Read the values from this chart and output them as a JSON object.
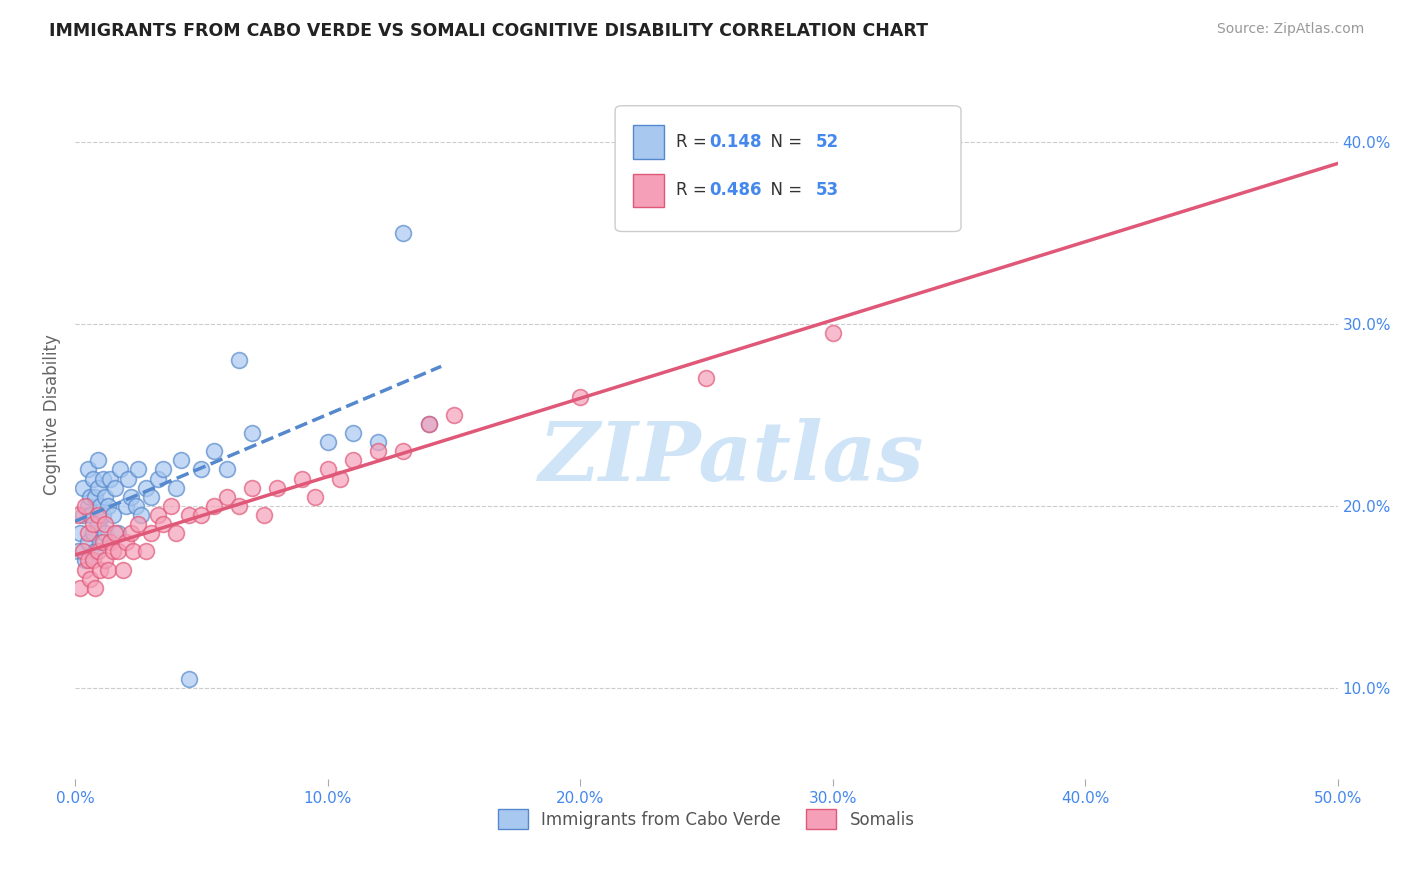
{
  "title": "IMMIGRANTS FROM CABO VERDE VS SOMALI COGNITIVE DISABILITY CORRELATION CHART",
  "source": "Source: ZipAtlas.com",
  "ylabel": "Cognitive Disability",
  "R_cabo": 0.148,
  "N_cabo": 52,
  "R_somali": 0.486,
  "N_somali": 53,
  "x_min": 0.0,
  "x_max": 0.5,
  "y_min": 0.05,
  "y_max": 0.45,
  "x_ticks": [
    0.0,
    0.1,
    0.2,
    0.3,
    0.4,
    0.5
  ],
  "x_tick_labels": [
    "0.0%",
    "10.0%",
    "20.0%",
    "30.0%",
    "40.0%",
    "50.0%"
  ],
  "y_ticks": [
    0.1,
    0.2,
    0.3,
    0.4
  ],
  "y_tick_labels": [
    "10.0%",
    "20.0%",
    "30.0%",
    "40.0%"
  ],
  "color_cabo": "#A8C8F0",
  "color_somali": "#F5A0B8",
  "line_color_cabo": "#5588CC",
  "line_color_somali": "#E05878",
  "watermark_text": "ZIPatlas",
  "watermark_color": "#D0E4F8",
  "cabo_x": [
    0.001,
    0.002,
    0.003,
    0.003,
    0.004,
    0.005,
    0.005,
    0.005,
    0.006,
    0.006,
    0.007,
    0.007,
    0.008,
    0.008,
    0.009,
    0.009,
    0.009,
    0.01,
    0.01,
    0.011,
    0.011,
    0.012,
    0.012,
    0.013,
    0.014,
    0.015,
    0.016,
    0.017,
    0.018,
    0.02,
    0.021,
    0.022,
    0.024,
    0.025,
    0.026,
    0.028,
    0.03,
    0.033,
    0.035,
    0.04,
    0.042,
    0.045,
    0.05,
    0.055,
    0.06,
    0.065,
    0.07,
    0.1,
    0.11,
    0.12,
    0.13,
    0.14
  ],
  "cabo_y": [
    0.175,
    0.185,
    0.195,
    0.21,
    0.17,
    0.18,
    0.2,
    0.22,
    0.195,
    0.205,
    0.185,
    0.215,
    0.175,
    0.205,
    0.19,
    0.21,
    0.225,
    0.18,
    0.2,
    0.195,
    0.215,
    0.185,
    0.205,
    0.2,
    0.215,
    0.195,
    0.21,
    0.185,
    0.22,
    0.2,
    0.215,
    0.205,
    0.2,
    0.22,
    0.195,
    0.21,
    0.205,
    0.215,
    0.22,
    0.21,
    0.225,
    0.105,
    0.22,
    0.23,
    0.22,
    0.28,
    0.24,
    0.235,
    0.24,
    0.235,
    0.35,
    0.245
  ],
  "somali_x": [
    0.001,
    0.002,
    0.003,
    0.004,
    0.004,
    0.005,
    0.005,
    0.006,
    0.007,
    0.007,
    0.008,
    0.009,
    0.009,
    0.01,
    0.011,
    0.012,
    0.012,
    0.013,
    0.014,
    0.015,
    0.016,
    0.017,
    0.019,
    0.02,
    0.022,
    0.023,
    0.025,
    0.028,
    0.03,
    0.033,
    0.035,
    0.038,
    0.04,
    0.045,
    0.05,
    0.055,
    0.06,
    0.065,
    0.07,
    0.075,
    0.08,
    0.09,
    0.095,
    0.1,
    0.105,
    0.11,
    0.12,
    0.13,
    0.14,
    0.15,
    0.2,
    0.25,
    0.3
  ],
  "somali_y": [
    0.195,
    0.155,
    0.175,
    0.165,
    0.2,
    0.17,
    0.185,
    0.16,
    0.17,
    0.19,
    0.155,
    0.175,
    0.195,
    0.165,
    0.18,
    0.17,
    0.19,
    0.165,
    0.18,
    0.175,
    0.185,
    0.175,
    0.165,
    0.18,
    0.185,
    0.175,
    0.19,
    0.175,
    0.185,
    0.195,
    0.19,
    0.2,
    0.185,
    0.195,
    0.195,
    0.2,
    0.205,
    0.2,
    0.21,
    0.195,
    0.21,
    0.215,
    0.205,
    0.22,
    0.215,
    0.225,
    0.23,
    0.23,
    0.245,
    0.25,
    0.26,
    0.27,
    0.295
  ]
}
